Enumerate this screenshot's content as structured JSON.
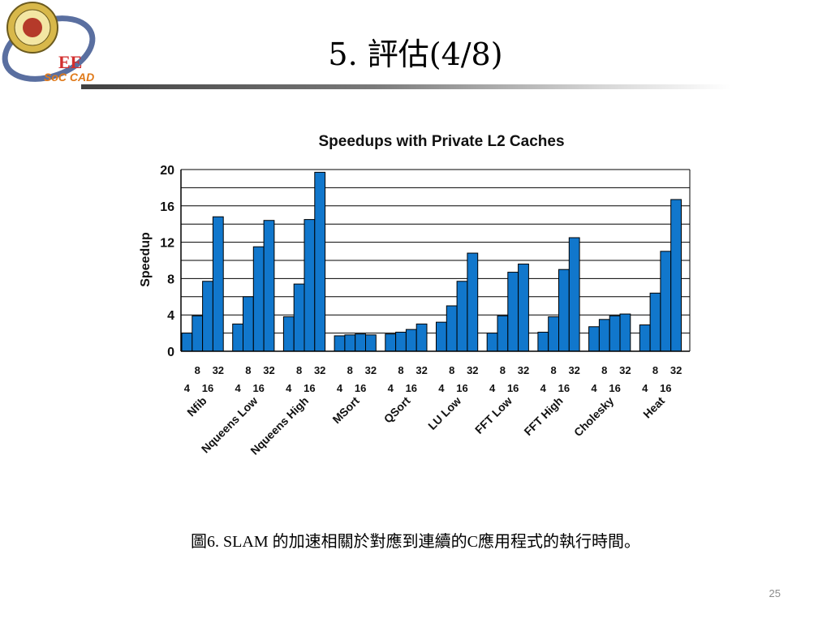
{
  "slide": {
    "title": "5. 評估(4/8)",
    "caption": "圖6. SLAM 的加速相關於對應到連續的C應用程式的執行時間。",
    "page_number": "25"
  },
  "logo": {
    "text_ee": "EE",
    "text_soc": "SoC CAD",
    "colors": {
      "ring": "#5a6fa0",
      "seal": "#d8b84a",
      "seal_inner": "#b53a2a",
      "ee": "#d32f2f",
      "soc": "#e07a1a"
    }
  },
  "chart_data": {
    "type": "bar",
    "title": "Speedups with Private L2 Caches",
    "ylabel": "Speedup",
    "ylim": [
      0,
      20
    ],
    "yticks": [
      0,
      4,
      8,
      12,
      16,
      20
    ],
    "gridlines": [
      0,
      2,
      4,
      6,
      8,
      10,
      12,
      14,
      16,
      18,
      20
    ],
    "legend": "none",
    "bar_color": "#1177cc",
    "threads": [
      "4",
      "8",
      "16",
      "32"
    ],
    "groups": [
      {
        "name": "Nfib",
        "values": [
          2.0,
          3.9,
          7.7,
          14.8
        ]
      },
      {
        "name": "Nqueens Low",
        "values": [
          3.0,
          6.0,
          11.5,
          14.4
        ]
      },
      {
        "name": "Nqueens High",
        "values": [
          3.8,
          7.4,
          14.5,
          19.7
        ]
      },
      {
        "name": "MSort",
        "values": [
          1.7,
          1.8,
          1.9,
          1.8
        ]
      },
      {
        "name": "QSort",
        "values": [
          1.9,
          2.1,
          2.4,
          3.0
        ]
      },
      {
        "name": "LU Low",
        "values": [
          3.2,
          5.0,
          7.7,
          10.8
        ]
      },
      {
        "name": "FFT Low",
        "values": [
          2.0,
          3.9,
          8.7,
          9.6
        ]
      },
      {
        "name": "FFT High",
        "values": [
          2.1,
          3.8,
          9.0,
          12.5
        ]
      },
      {
        "name": "Cholesky",
        "values": [
          2.7,
          3.5,
          3.9,
          4.1
        ]
      },
      {
        "name": "Heat",
        "values": [
          2.9,
          6.4,
          11.0,
          16.7
        ]
      }
    ]
  }
}
